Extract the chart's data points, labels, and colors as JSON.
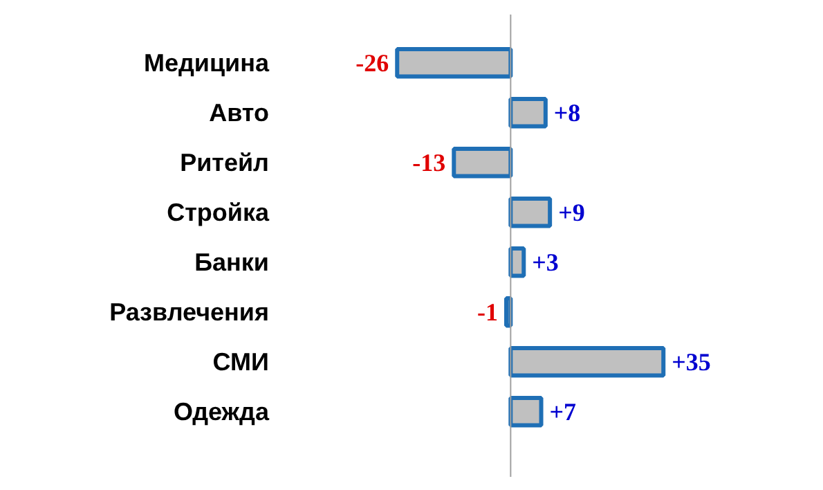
{
  "chart_data": {
    "type": "bar",
    "orientation": "horizontal",
    "categories": [
      "Медицина",
      "Авто",
      "Ритейл",
      "Стройка",
      "Банки",
      "Развлечения",
      "СМИ",
      "Одежда"
    ],
    "values": [
      -26,
      8,
      -13,
      9,
      3,
      -1,
      35,
      7
    ],
    "value_labels": [
      "-26",
      "+8",
      "-13",
      "+9",
      "+3",
      "-1",
      "+35",
      "+7"
    ],
    "color": "#c0c0c0"
  }
}
